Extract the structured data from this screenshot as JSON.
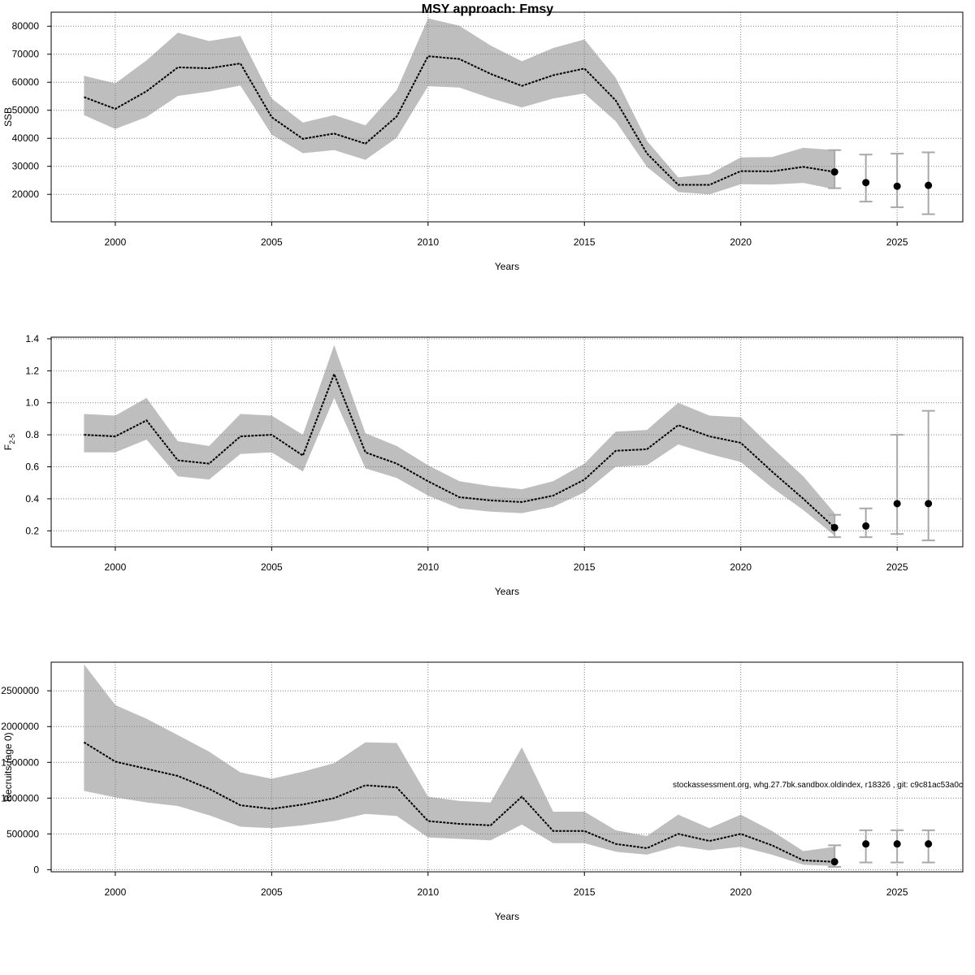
{
  "title": "MSY approach: Fmsy",
  "annotation": "stockassessment.org, whg.27.7bk.sandbox.oldindex, r18326 , git: c9c81ac53a0c",
  "colors": {
    "band": "#bebebe",
    "line": "#000000",
    "grid": "#808080",
    "errorbar": "#a8a8a8",
    "point": "#000000"
  },
  "chart_data": [
    {
      "type": "line",
      "id": "ssb",
      "xlabel": "Years",
      "ylabel": "SSB",
      "ylabel_main": "SSB",
      "ylabel_sub": "",
      "xlim": [
        1997.95,
        2027.1
      ],
      "ylim": [
        10200,
        85000
      ],
      "xticks": [
        2000,
        2005,
        2010,
        2015,
        2020,
        2025
      ],
      "yticks": [
        20000,
        30000,
        40000,
        50000,
        60000,
        70000,
        80000
      ],
      "ytick_labels": [
        "20000",
        "30000",
        "40000",
        "50000",
        "60000",
        "70000",
        "80000"
      ],
      "years": [
        1999,
        2000,
        2001,
        2002,
        2003,
        2004,
        2005,
        2006,
        2007,
        2008,
        2009,
        2010,
        2011,
        2012,
        2013,
        2014,
        2015,
        2016,
        2017,
        2018,
        2019,
        2020,
        2021,
        2022,
        2023
      ],
      "estimate": [
        54700,
        50500,
        56800,
        65300,
        65000,
        66700,
        47500,
        39800,
        41700,
        38100,
        47800,
        69300,
        68300,
        63000,
        58700,
        62500,
        64900,
        53500,
        34600,
        23400,
        23400,
        28300,
        28200,
        29800,
        28000
      ],
      "lower": [
        48300,
        43300,
        47600,
        55100,
        56700,
        58800,
        41300,
        34700,
        35800,
        32300,
        40200,
        58600,
        58100,
        54300,
        51000,
        54200,
        56000,
        46100,
        29800,
        20800,
        20000,
        23600,
        23500,
        24100,
        21800
      ],
      "upper": [
        62300,
        59600,
        67800,
        77700,
        74700,
        76500,
        54200,
        45600,
        48300,
        44600,
        57200,
        82800,
        80200,
        73100,
        67500,
        72200,
        75300,
        61600,
        39100,
        26100,
        27200,
        33200,
        33300,
        36600,
        35800
      ],
      "forecast": [
        {
          "year": 2023,
          "value": 28000,
          "low": 22200,
          "high": 35800
        },
        {
          "year": 2024,
          "value": 24200,
          "low": 17400,
          "high": 34200
        },
        {
          "year": 2025,
          "value": 22900,
          "low": 15400,
          "high": 34500
        },
        {
          "year": 2026,
          "value": 23200,
          "low": 12900,
          "high": 35000
        }
      ]
    },
    {
      "type": "line",
      "id": "fbar",
      "xlabel": "Years",
      "ylabel": "F2-5",
      "ylabel_main": "F",
      "ylabel_sub": "2-5",
      "xlim": [
        1997.95,
        2027.1
      ],
      "ylim": [
        0.1,
        1.41
      ],
      "xticks": [
        2000,
        2005,
        2010,
        2015,
        2020,
        2025
      ],
      "yticks": [
        0.2,
        0.4,
        0.6,
        0.8,
        1.0,
        1.2,
        1.4
      ],
      "ytick_labels": [
        "0.2",
        "0.4",
        "0.6",
        "0.8",
        "1.0",
        "1.2",
        "1.4"
      ],
      "years": [
        1999,
        2000,
        2001,
        2002,
        2003,
        2004,
        2005,
        2006,
        2007,
        2008,
        2009,
        2010,
        2011,
        2012,
        2013,
        2014,
        2015,
        2016,
        2017,
        2018,
        2019,
        2020,
        2021,
        2022,
        2023
      ],
      "estimate": [
        0.8,
        0.79,
        0.89,
        0.64,
        0.62,
        0.79,
        0.8,
        0.67,
        1.18,
        0.69,
        0.62,
        0.51,
        0.41,
        0.39,
        0.38,
        0.42,
        0.52,
        0.7,
        0.71,
        0.86,
        0.79,
        0.75,
        0.57,
        0.4,
        0.22
      ],
      "lower": [
        0.69,
        0.69,
        0.77,
        0.54,
        0.52,
        0.68,
        0.69,
        0.57,
        1.03,
        0.59,
        0.53,
        0.42,
        0.34,
        0.32,
        0.31,
        0.35,
        0.44,
        0.6,
        0.61,
        0.74,
        0.68,
        0.63,
        0.47,
        0.33,
        0.17
      ],
      "upper": [
        0.93,
        0.92,
        1.03,
        0.76,
        0.73,
        0.93,
        0.92,
        0.8,
        1.36,
        0.81,
        0.73,
        0.61,
        0.51,
        0.48,
        0.46,
        0.51,
        0.62,
        0.82,
        0.83,
        1.0,
        0.92,
        0.91,
        0.72,
        0.54,
        0.31
      ],
      "forecast": [
        {
          "year": 2023,
          "value": 0.22,
          "low": 0.16,
          "high": 0.3
        },
        {
          "year": 2024,
          "value": 0.23,
          "low": 0.16,
          "high": 0.34
        },
        {
          "year": 2025,
          "value": 0.37,
          "low": 0.18,
          "high": 0.8
        },
        {
          "year": 2026,
          "value": 0.37,
          "low": 0.14,
          "high": 0.95
        }
      ]
    },
    {
      "type": "line",
      "id": "recruits",
      "xlabel": "Years",
      "ylabel": "Recruits (age 0)",
      "ylabel_main": "Recruits (age 0)",
      "ylabel_sub": "",
      "xlim": [
        1997.95,
        2027.1
      ],
      "ylim": [
        -30000,
        2900000
      ],
      "xticks": [
        2000,
        2005,
        2010,
        2015,
        2020,
        2025
      ],
      "yticks": [
        0,
        500000,
        1000000,
        1500000,
        2000000,
        2500000
      ],
      "ytick_labels": [
        "0",
        "500000",
        "1000000",
        "1500000",
        "2000000",
        "2500000"
      ],
      "years": [
        1999,
        2000,
        2001,
        2002,
        2003,
        2004,
        2005,
        2006,
        2007,
        2008,
        2009,
        2010,
        2011,
        2012,
        2013,
        2014,
        2015,
        2016,
        2017,
        2018,
        2019,
        2020,
        2021,
        2022,
        2023
      ],
      "estimate": [
        1780000,
        1510000,
        1410000,
        1310000,
        1130000,
        900000,
        850000,
        910000,
        1000000,
        1180000,
        1150000,
        680000,
        640000,
        620000,
        1020000,
        540000,
        540000,
        360000,
        300000,
        500000,
        400000,
        500000,
        340000,
        130000,
        110000
      ],
      "lower": [
        1100000,
        1010000,
        940000,
        890000,
        760000,
        600000,
        580000,
        620000,
        680000,
        780000,
        750000,
        450000,
        430000,
        410000,
        630000,
        370000,
        370000,
        250000,
        210000,
        330000,
        270000,
        320000,
        210000,
        70000,
        50000
      ],
      "upper": [
        2870000,
        2300000,
        2110000,
        1880000,
        1650000,
        1360000,
        1270000,
        1370000,
        1490000,
        1780000,
        1770000,
        1020000,
        960000,
        940000,
        1710000,
        810000,
        810000,
        550000,
        470000,
        770000,
        580000,
        770000,
        540000,
        260000,
        320000
      ],
      "forecast": [
        {
          "year": 2023,
          "value": 110000,
          "low": 40000,
          "high": 340000
        },
        {
          "year": 2024,
          "value": 360000,
          "low": 100000,
          "high": 550000
        },
        {
          "year": 2025,
          "value": 360000,
          "low": 100000,
          "high": 550000
        },
        {
          "year": 2026,
          "value": 360000,
          "low": 100000,
          "high": 550000
        }
      ]
    }
  ]
}
